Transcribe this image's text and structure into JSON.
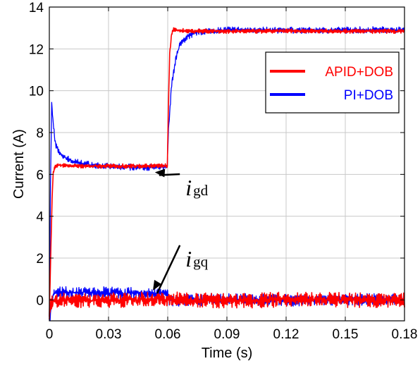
{
  "chart_data": {
    "type": "line",
    "xlabel": "Time (s)",
    "ylabel": "Current (A)",
    "xlim": [
      0,
      0.18
    ],
    "ylim": [
      -1,
      14
    ],
    "x_ticks": [
      "0",
      "0.03",
      "0.06",
      "0.09",
      "0.12",
      "0.15",
      "0.18"
    ],
    "y_ticks": [
      "0",
      "2",
      "4",
      "6",
      "8",
      "10",
      "12",
      "14"
    ],
    "grid": true,
    "legend_position": "top-right",
    "series": [
      {
        "name": "APID+DOB",
        "color": "#ff0000",
        "curves": {
          "igd": {
            "x": [
              0,
              0.0008,
              0.0015,
              0.002,
              0.003,
              0.005,
              0.01,
              0.03,
              0.0598,
              0.0603,
              0.061,
              0.062,
              0.063,
              0.065,
              0.07,
              0.1,
              0.18
            ],
            "y": [
              -0.8,
              2.5,
              5.2,
              6.1,
              6.4,
              6.45,
              6.4,
              6.4,
              6.4,
              9.0,
              11.8,
              12.7,
              12.9,
              12.9,
              12.85,
              12.85,
              12.85
            ],
            "noise": 0.08
          },
          "igq": {
            "x": [
              0,
              0.0008,
              0.002,
              0.004,
              0.18
            ],
            "y": [
              -0.9,
              -0.3,
              0.0,
              0.0,
              0.0
            ],
            "noise": 0.28
          }
        }
      },
      {
        "name": "PI+DOB",
        "color": "#0000ff",
        "curves": {
          "igd": {
            "x": [
              0,
              0.0006,
              0.0012,
              0.0018,
              0.003,
              0.005,
              0.008,
              0.012,
              0.018,
              0.025,
              0.035,
              0.0598,
              0.0603,
              0.062,
              0.064,
              0.066,
              0.07,
              0.075,
              0.08,
              0.09,
              0.1,
              0.18
            ],
            "y": [
              -0.8,
              5.5,
              9.4,
              8.6,
              7.5,
              7.0,
              6.8,
              6.6,
              6.5,
              6.4,
              6.35,
              6.35,
              8.0,
              10.3,
              11.5,
              12.2,
              12.6,
              12.8,
              12.85,
              12.9,
              12.9,
              12.9
            ],
            "noise": 0.12
          },
          "igq": {
            "x": [
              0,
              0.0008,
              0.002,
              0.004,
              0.0598,
              0.0606,
              0.18
            ],
            "y": [
              -0.9,
              -0.5,
              0.3,
              0.35,
              0.3,
              0.0,
              0.0
            ],
            "noise": 0.22
          }
        }
      }
    ],
    "annotations": [
      {
        "main": "i",
        "sub": "gd",
        "target": [
          0.0535,
          6.1
        ],
        "label_at": [
          0.069,
          5.0
        ]
      },
      {
        "main": "i",
        "sub": "gq",
        "target": [
          0.0525,
          0.45
        ],
        "label_at": [
          0.069,
          1.6
        ]
      }
    ]
  }
}
